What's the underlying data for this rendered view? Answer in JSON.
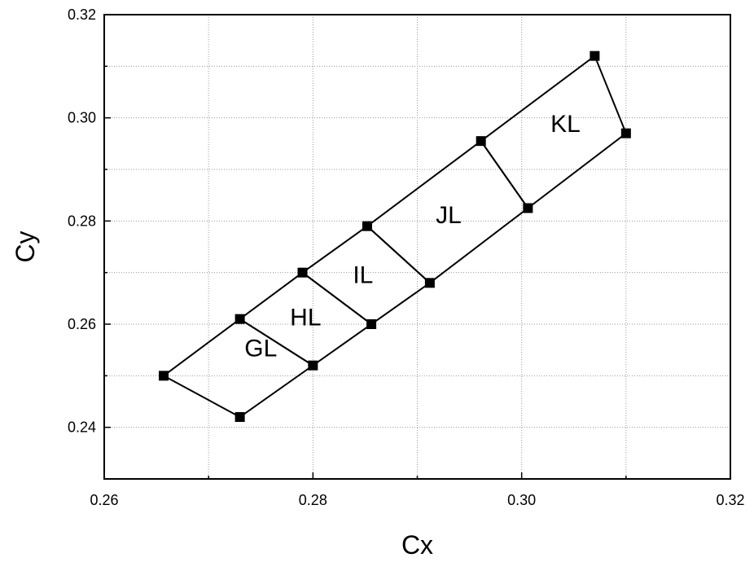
{
  "chart_data": {
    "type": "line",
    "title": "",
    "xlabel": "Cx",
    "ylabel": "Cy",
    "xlim": [
      0.26,
      0.32
    ],
    "ylim": [
      0.23,
      0.32
    ],
    "x_ticks": [
      0.26,
      0.28,
      0.3,
      0.32
    ],
    "x_tick_labels": [
      "0.26",
      "0.28",
      "0.30",
      "0.32"
    ],
    "y_ticks": [
      0.24,
      0.26,
      0.28,
      0.3,
      0.32
    ],
    "y_tick_labels": [
      "0.24",
      "0.26",
      "0.28",
      "0.30",
      "0.32"
    ],
    "x_minor_grid": [
      0.27,
      0.29,
      0.31
    ],
    "y_minor_grid": [
      0.25,
      0.27,
      0.29,
      0.31
    ],
    "grid": true,
    "marker": "square",
    "line_color": "#000000",
    "regions": [
      {
        "name": "GL",
        "label_at": [
          0.275,
          0.2555
        ],
        "points": [
          [
            0.2657,
            0.25
          ],
          [
            0.273,
            0.261
          ],
          [
            0.28,
            0.252
          ],
          [
            0.273,
            0.242
          ],
          [
            0.2657,
            0.25
          ]
        ]
      },
      {
        "name": "HL",
        "label_at": [
          0.2793,
          0.2615
        ],
        "points": [
          [
            0.273,
            0.261
          ],
          [
            0.279,
            0.27
          ],
          [
            0.2856,
            0.26
          ],
          [
            0.28,
            0.252
          ],
          [
            0.273,
            0.261
          ]
        ]
      },
      {
        "name": "IL",
        "label_at": [
          0.2848,
          0.2697
        ],
        "points": [
          [
            0.279,
            0.27
          ],
          [
            0.2852,
            0.279
          ],
          [
            0.2912,
            0.268
          ],
          [
            0.2856,
            0.26
          ],
          [
            0.279,
            0.27
          ]
        ]
      },
      {
        "name": "JL",
        "label_at": [
          0.293,
          0.2813
        ],
        "points": [
          [
            0.2852,
            0.279
          ],
          [
            0.2961,
            0.2955
          ],
          [
            0.3006,
            0.2825
          ],
          [
            0.2912,
            0.268
          ],
          [
            0.2852,
            0.279
          ]
        ]
      },
      {
        "name": "KL",
        "label_at": [
          0.3042,
          0.299
        ],
        "points": [
          [
            0.2961,
            0.2955
          ],
          [
            0.307,
            0.312
          ],
          [
            0.31,
            0.297
          ],
          [
            0.3006,
            0.2825
          ],
          [
            0.2961,
            0.2955
          ]
        ]
      }
    ]
  }
}
